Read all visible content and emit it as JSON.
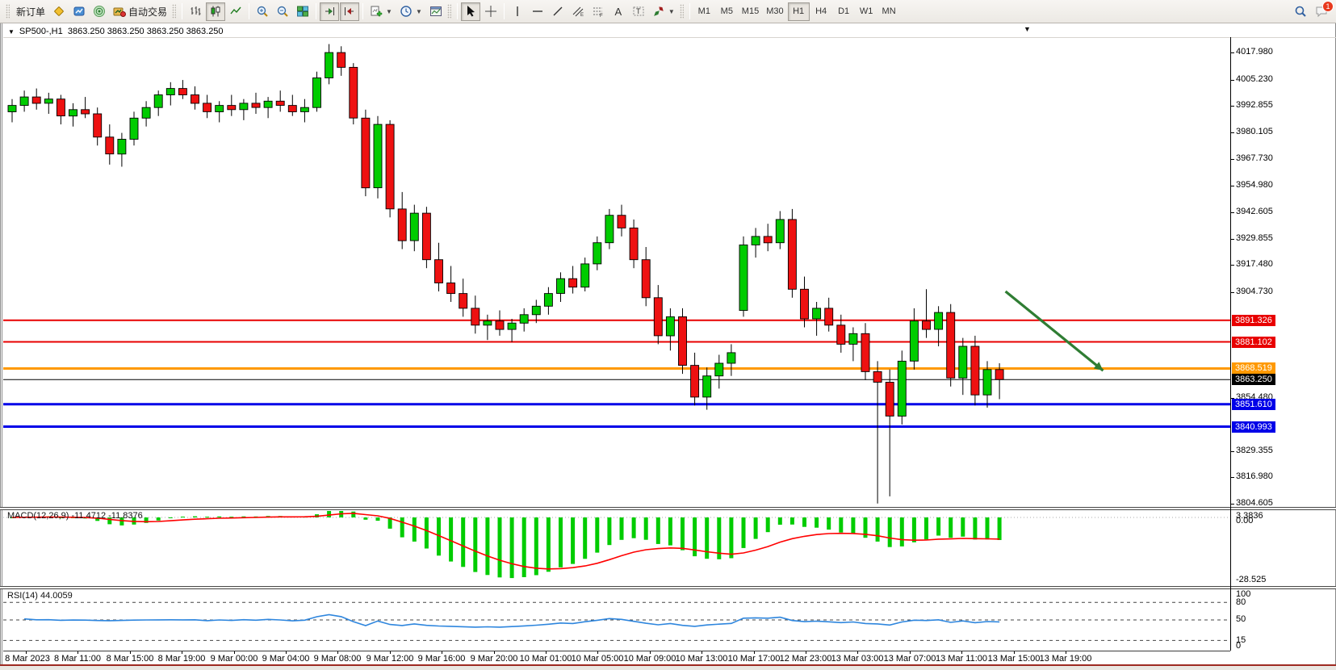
{
  "toolbar": {
    "new_order_label": "新订单",
    "auto_trading_label": "自动交易",
    "timeframes": [
      "M1",
      "M5",
      "M15",
      "M30",
      "H1",
      "H4",
      "D1",
      "W1",
      "MN"
    ],
    "active_timeframe": "H1",
    "chat_badge": "1"
  },
  "chart": {
    "title_symbol": "SP500-,H1",
    "title_ohlc": "3863.250 3863.250 3863.250 3863.250",
    "collapse_arrow": "▼",
    "scroll_marker": "▼"
  },
  "chart_data": {
    "type": "candlestick",
    "symbol": "SP500-",
    "timeframe": "H1",
    "price_axis_ticks": [
      "4017.980",
      "4005.230",
      "3992.855",
      "3980.105",
      "3967.730",
      "3954.980",
      "3942.605",
      "3929.855",
      "3917.480",
      "3904.730",
      "3854.480",
      "3829.355",
      "3816.980",
      "3804.605"
    ],
    "price_range": {
      "top": 4025.3,
      "bottom": 3803.0
    },
    "levels": [
      {
        "price": 3891.326,
        "label": "3891.326",
        "color": "#e80000",
        "thickness": 2
      },
      {
        "price": 3881.102,
        "label": "3881.102",
        "color": "#e80000",
        "thickness": 2
      },
      {
        "price": 3868.519,
        "label": "3868.519",
        "color": "#ff9900",
        "thickness": 3
      },
      {
        "price": 3863.25,
        "label": "3863.250",
        "color": "#000000",
        "thickness": 1
      },
      {
        "price": 3851.61,
        "label": "3851.610",
        "color": "#0000e8",
        "thickness": 3
      },
      {
        "price": 3840.993,
        "label": "3840.993",
        "color": "#0000e8",
        "thickness": 3
      }
    ],
    "current_price": "3863.250",
    "candles": [
      [
        3990,
        3996,
        3985,
        3993
      ],
      [
        3993,
        4000,
        3990,
        3997
      ],
      [
        3997,
        4001,
        3991,
        3994
      ],
      [
        3994,
        3999,
        3989,
        3996
      ],
      [
        3996,
        3998,
        3984,
        3988
      ],
      [
        3988,
        3994,
        3983,
        3991
      ],
      [
        3991,
        3997,
        3987,
        3989
      ],
      [
        3989,
        3992,
        3974,
        3978
      ],
      [
        3978,
        3984,
        3965,
        3970
      ],
      [
        3970,
        3980,
        3964,
        3977
      ],
      [
        3977,
        3990,
        3974,
        3987
      ],
      [
        3987,
        3995,
        3983,
        3992
      ],
      [
        3992,
        4000,
        3988,
        3998
      ],
      [
        3998,
        4004,
        3993,
        4001
      ],
      [
        4001,
        4005,
        3996,
        3998
      ],
      [
        3998,
        4002,
        3991,
        3994
      ],
      [
        3994,
        3998,
        3987,
        3990
      ],
      [
        3990,
        3995,
        3985,
        3993
      ],
      [
        3993,
        3998,
        3988,
        3991
      ],
      [
        3991,
        3996,
        3986,
        3994
      ],
      [
        3994,
        3999,
        3989,
        3992
      ],
      [
        3992,
        3997,
        3987,
        3995
      ],
      [
        3995,
        4000,
        3990,
        3993
      ],
      [
        3993,
        3998,
        3988,
        3990
      ],
      [
        3990,
        3996,
        3985,
        3992
      ],
      [
        3992,
        4009,
        3990,
        4006
      ],
      [
        4006,
        4022,
        4003,
        4018
      ],
      [
        4018,
        4021,
        4007,
        4011
      ],
      [
        4011,
        4013,
        3984,
        3987
      ],
      [
        3987,
        3991,
        3950,
        3954
      ],
      [
        3954,
        3988,
        3949,
        3984
      ],
      [
        3984,
        3986,
        3940,
        3944
      ],
      [
        3944,
        3952,
        3925,
        3929
      ],
      [
        3929,
        3946,
        3924,
        3942
      ],
      [
        3942,
        3945,
        3916,
        3920
      ],
      [
        3920,
        3928,
        3905,
        3909
      ],
      [
        3909,
        3917,
        3900,
        3904
      ],
      [
        3904,
        3911,
        3893,
        3897
      ],
      [
        3897,
        3903,
        3885,
        3889
      ],
      [
        3889,
        3894,
        3882,
        3891
      ],
      [
        3891,
        3896,
        3884,
        3887
      ],
      [
        3887,
        3892,
        3881,
        3890
      ],
      [
        3890,
        3897,
        3886,
        3894
      ],
      [
        3894,
        3901,
        3890,
        3898
      ],
      [
        3898,
        3907,
        3894,
        3904
      ],
      [
        3904,
        3914,
        3900,
        3911
      ],
      [
        3911,
        3917,
        3904,
        3907
      ],
      [
        3907,
        3921,
        3905,
        3918
      ],
      [
        3918,
        3931,
        3915,
        3928
      ],
      [
        3928,
        3944,
        3925,
        3941
      ],
      [
        3941,
        3946,
        3931,
        3935
      ],
      [
        3935,
        3939,
        3916,
        3920
      ],
      [
        3920,
        3926,
        3898,
        3902
      ],
      [
        3902,
        3908,
        3880,
        3884
      ],
      [
        3884,
        3897,
        3877,
        3893
      ],
      [
        3893,
        3897,
        3866,
        3870
      ],
      [
        3870,
        3876,
        3851,
        3855
      ],
      [
        3855,
        3869,
        3849,
        3865
      ],
      [
        3865,
        3875,
        3859,
        3871
      ],
      [
        3871,
        3880,
        3865,
        3876
      ],
      [
        3896,
        3931,
        3893,
        3927
      ],
      [
        3927,
        3935,
        3921,
        3931
      ],
      [
        3931,
        3937,
        3924,
        3928
      ],
      [
        3928,
        3943,
        3925,
        3939
      ],
      [
        3939,
        3944,
        3902,
        3906
      ],
      [
        3906,
        3912,
        3888,
        3892
      ],
      [
        3892,
        3900,
        3884,
        3897
      ],
      [
        3897,
        3902,
        3886,
        3889
      ],
      [
        3889,
        3894,
        3876,
        3880
      ],
      [
        3880,
        3888,
        3872,
        3885
      ],
      [
        3885,
        3890,
        3863,
        3867
      ],
      [
        3867,
        3872,
        3804.61,
        3862
      ],
      [
        3862,
        3868,
        3808,
        3846
      ],
      [
        3846,
        3877,
        3842,
        3872
      ],
      [
        3872,
        3897,
        3868,
        3891
      ],
      [
        3891,
        3906,
        3883,
        3887
      ],
      [
        3887,
        3898,
        3879,
        3895
      ],
      [
        3895,
        3899,
        3860,
        3864
      ],
      [
        3864,
        3883,
        3856,
        3879
      ],
      [
        3879,
        3884,
        3851,
        3856
      ],
      [
        3856,
        3872,
        3850,
        3868
      ],
      [
        3868,
        3871,
        3854,
        3863.25
      ]
    ],
    "time_labels": [
      "8 Mar 2023",
      "8 Mar 11:00",
      "8 Mar 15:00",
      "8 Mar 19:00",
      "9 Mar 00:00",
      "9 Mar 04:00",
      "9 Mar 08:00",
      "9 Mar 12:00",
      "9 Mar 16:00",
      "9 Mar 20:00",
      "10 Mar 01:00",
      "10 Mar 05:00",
      "10 Mar 09:00",
      "10 Mar 13:00",
      "10 Mar 17:00",
      "12 Mar 23:00",
      "13 Mar 03:00",
      "13 Mar 07:00",
      "13 Mar 11:00",
      "13 Mar 15:00",
      "13 Mar 19:00"
    ],
    "macd": {
      "display": "MACD(12,26,9) -11.4712 -11.8376",
      "params": [
        12,
        26,
        9
      ],
      "main_value": "-11.4712",
      "signal_value": "-11.8376",
      "axis_labels": [
        "3.3836",
        "0.00",
        "-28.525"
      ]
    },
    "rsi": {
      "display": "RSI(14) 44.0059",
      "period": 14,
      "value": "44.0059",
      "axis_labels": [
        "100",
        "80",
        "50",
        "15",
        "0"
      ],
      "guide_levels": [
        80,
        50,
        15
      ]
    },
    "annotation_arrow": {
      "bar_from": 81.5,
      "price_from": 3905,
      "bar_to": 89.5,
      "price_to": 3867.5,
      "color": "#2f7d33"
    },
    "colors": {
      "bull": "#00cc00",
      "bear": "#ee1111",
      "outline": "#000000",
      "macd_bar": "#00cc00",
      "macd_signal": "#ff0000",
      "rsi_line": "#2e86de"
    }
  }
}
